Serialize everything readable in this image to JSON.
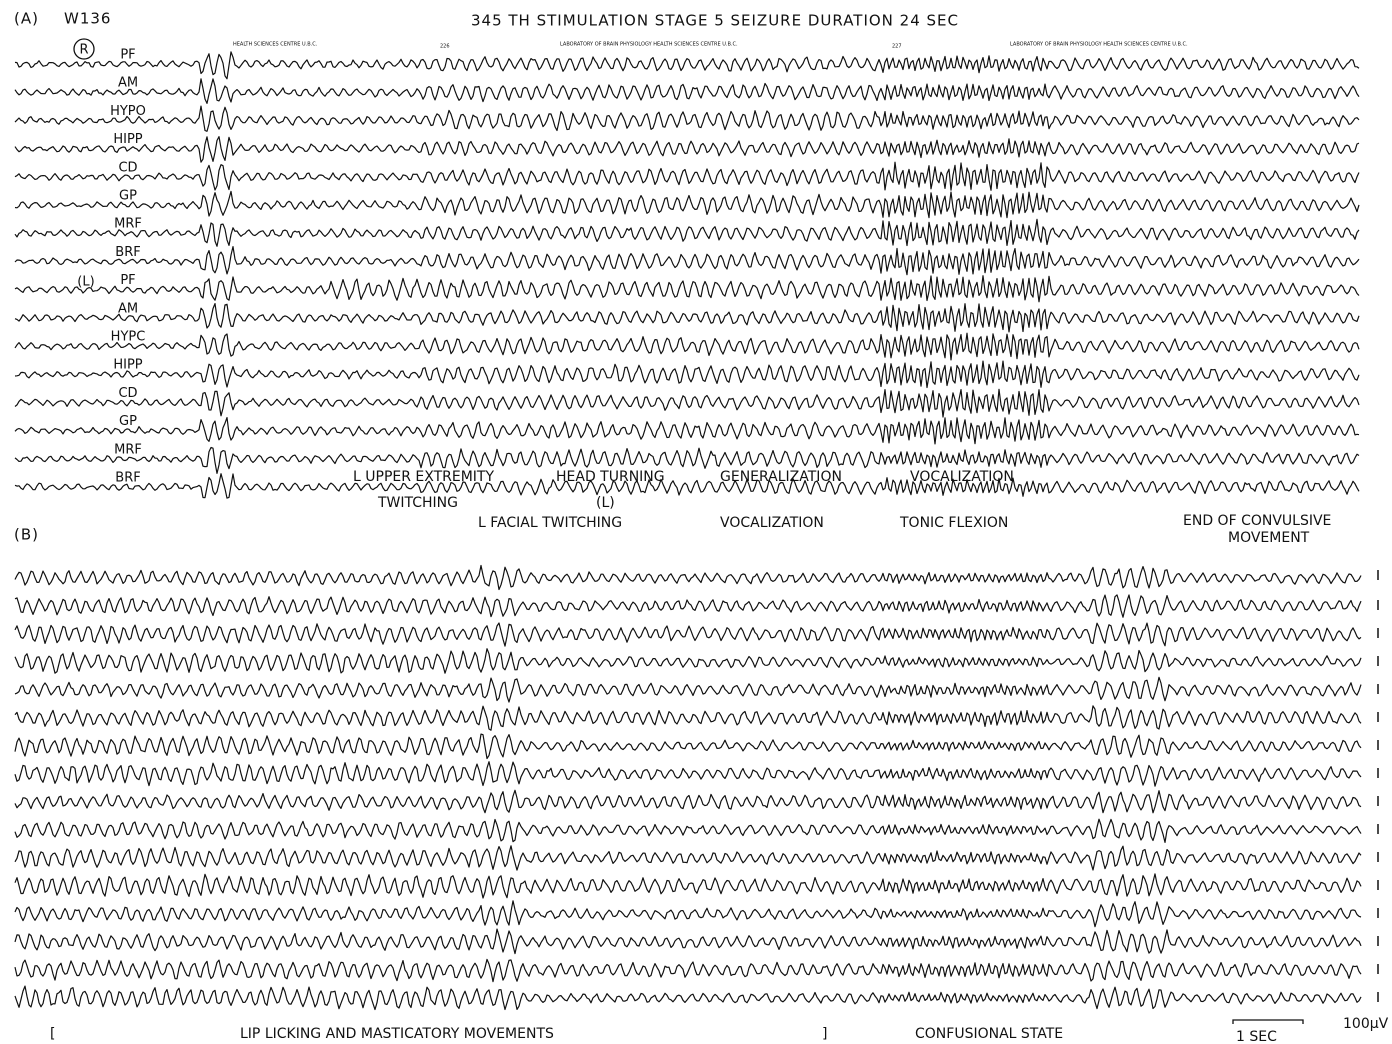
{
  "panel_a": {
    "label": "(A)",
    "subject": "W136",
    "title": "345 TH  STIMULATION  STAGE 5  SEIZURE  DURATION  24 SEC",
    "right_side": "R",
    "left_side": "(L)",
    "channels": [
      "PF",
      "AM",
      "HYPO",
      "HIPP",
      "CD",
      "GP",
      "MRF",
      "BRF",
      "PF",
      "AM",
      "HYPC",
      "HIPP",
      "CD",
      "GP",
      "MRF",
      "BRF"
    ],
    "stamps": [
      "HEALTH SCIENCES CENTRE U.B.C.",
      "226",
      "LABORATORY OF BRAIN PHYSIOLOGY HEALTH SCIENCES CENTRE U.B.C.",
      "227",
      "LABORATORY OF BRAIN PHYSIOLOGY HEALTH SCIENCES CENTRE U.B.C."
    ],
    "events": {
      "upper_extremity": "L UPPER  EXTREMITY",
      "twitching": "TWITCHING",
      "head_turning": "HEAD TURNING",
      "head_side": "(L)",
      "generalization": "GENERALIZATION",
      "vocalization_1": "VOCALIZATION",
      "facial_twitching": "L  FACIAL  TWITCHING",
      "vocalization_2": "VOCALIZATION",
      "tonic_flexion": "TONIC  FLEXION",
      "end_convulsive": "END  OF  CONVULSIVE",
      "movement": "MOVEMENT"
    }
  },
  "panel_b": {
    "label": "(B)",
    "bracket_open": "[",
    "lip_licking": "LIP  LICKING  AND  MASTICATORY  MOVEMENTS",
    "bracket_close": "]",
    "confusional": "CONFUSIONAL  STATE",
    "time_scale": "1 SEC",
    "amplitude_scale": "100μV"
  }
}
